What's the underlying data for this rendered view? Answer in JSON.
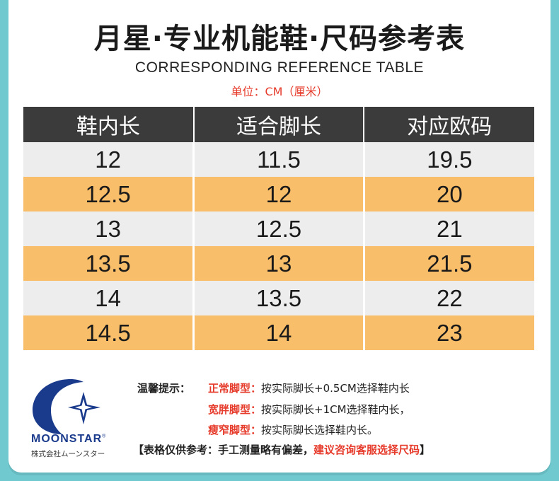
{
  "title": "月星·专业机能鞋·尺码参考表",
  "subtitle": "CORRESPONDING REFERENCE TABLE",
  "unit": "单位：CM（厘米）",
  "colors": {
    "background": "#6fc9cf",
    "header": "#3b3b3b",
    "row_light": "#ededed",
    "row_orange": "#f8be6a",
    "accent_red": "#e63a2a",
    "logo_blue": "#1a3a8c"
  },
  "table": {
    "headers": [
      "鞋内长",
      "适合脚长",
      "对应欧码"
    ],
    "rows": [
      [
        "12",
        "11.5",
        "19.5"
      ],
      [
        "12.5",
        "12",
        "20"
      ],
      [
        "13",
        "12.5",
        "21"
      ],
      [
        "13.5",
        "13",
        "21.5"
      ],
      [
        "14",
        "13.5",
        "22"
      ],
      [
        "14.5",
        "14",
        "23"
      ]
    ]
  },
  "brand": {
    "logo_icon": "moonstar-logo-icon",
    "name": "MOONSTAR",
    "registered": "®",
    "japanese": "株式会社ムーンスター"
  },
  "tips": {
    "label": "温馨提示：",
    "items": [
      {
        "type": "正常脚型：",
        "text": "按实际脚长+0.5CM选择鞋内长"
      },
      {
        "type": "宽胖脚型：",
        "text": "按实际脚长+1CM选择鞋内长，"
      },
      {
        "type": "瘦窄脚型：",
        "text": "按实际脚长选择鞋内长。"
      }
    ],
    "note_prefix": "【表格仅供参考：手工测量略有偏差，",
    "note_highlight": "建议咨询客服选择尺码",
    "note_suffix": "】"
  }
}
